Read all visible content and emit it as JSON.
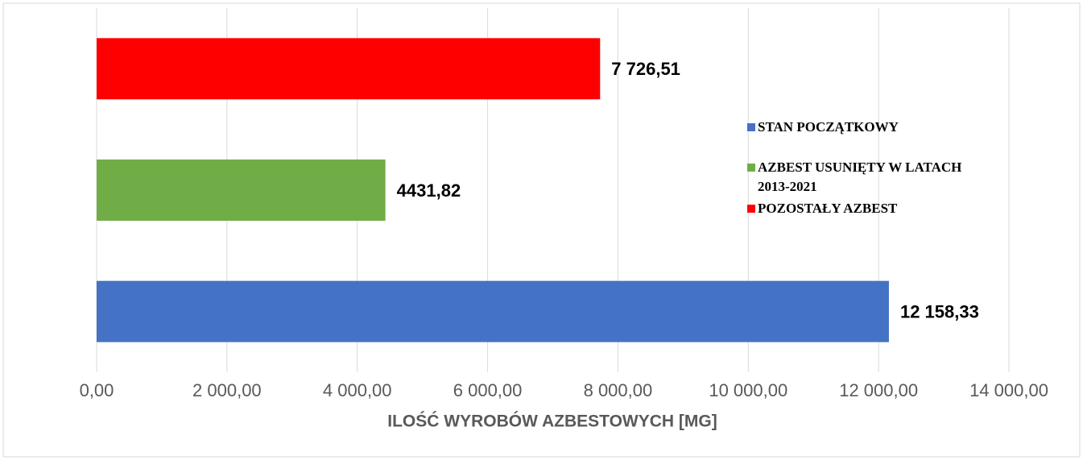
{
  "chart_data": {
    "type": "bar",
    "orientation": "horizontal",
    "x_label": "ILOŚĆ WYROBÓW AZBESTOWYCH [MG]",
    "series": [
      {
        "name": "STAN POCZĄTKOWY",
        "color": "#4472c4",
        "values": [
          12158.33
        ],
        "value_labels": [
          "12 158,33"
        ]
      },
      {
        "name": "AZBEST USUNIĘTY W LATACH 2013-2021",
        "color": "#70ad47",
        "values": [
          4431.82
        ],
        "value_labels": [
          "4431,82"
        ]
      },
      {
        "name": "POZOSTAŁY AZBEST",
        "color": "#ff0000",
        "values": [
          7726.51
        ],
        "value_labels": [
          "7 726,51"
        ]
      }
    ],
    "xlim": [
      0,
      14000
    ],
    "xticks": [
      {
        "value": 0,
        "label": "0,00"
      },
      {
        "value": 2000,
        "label": "2 000,00"
      },
      {
        "value": 4000,
        "label": "4 000,00"
      },
      {
        "value": 6000,
        "label": "6 000,00"
      },
      {
        "value": 8000,
        "label": "8 000,00"
      },
      {
        "value": 10000,
        "label": "10 000,00"
      },
      {
        "value": 12000,
        "label": "12 000,00"
      },
      {
        "value": 14000,
        "label": "14 000,00"
      }
    ],
    "grid": true,
    "legend": "right"
  }
}
